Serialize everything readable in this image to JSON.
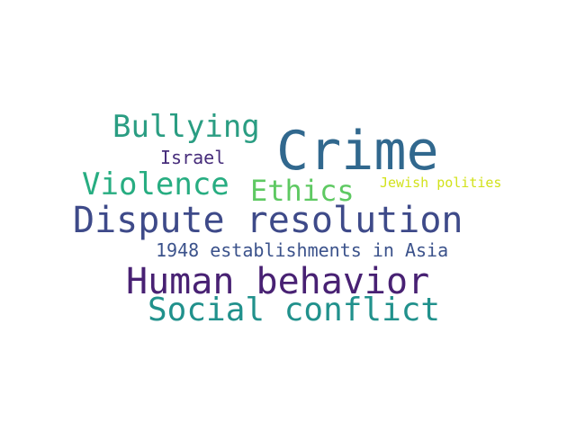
{
  "words": [
    {
      "text": "Crime",
      "color": "#31688e"
    },
    {
      "text": "Dispute resolution",
      "color": "#3e4a89"
    },
    {
      "text": "Human behavior",
      "color": "#482173"
    },
    {
      "text": "Social conflict",
      "color": "#21918c"
    },
    {
      "text": "Bullying",
      "color": "#2a9d82"
    },
    {
      "text": "Violence",
      "color": "#27ad81"
    },
    {
      "text": "Ethics",
      "color": "#5ec962"
    },
    {
      "text": "1948 establishments in Asia",
      "color": "#3b528b"
    },
    {
      "text": "Israel",
      "color": "#472d7b"
    },
    {
      "text": "Jewish polities",
      "color": "#d2e21b"
    }
  ]
}
